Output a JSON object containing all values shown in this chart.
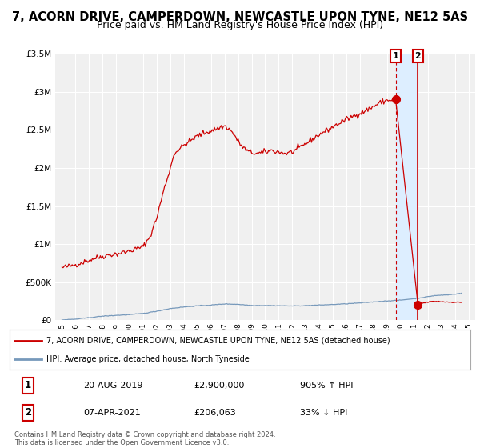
{
  "title": "7, ACORN DRIVE, CAMPERDOWN, NEWCASTLE UPON TYNE, NE12 5AS",
  "subtitle": "Price paid vs. HM Land Registry's House Price Index (HPI)",
  "red_label": "7, ACORN DRIVE, CAMPERDOWN, NEWCASTLE UPON TYNE, NE12 5AS (detached house)",
  "blue_label": "HPI: Average price, detached house, North Tyneside",
  "annotation1_date": "20-AUG-2019",
  "annotation1_price": "£2,900,000",
  "annotation1_hpi": "905% ↑ HPI",
  "annotation2_date": "07-APR-2021",
  "annotation2_price": "£206,063",
  "annotation2_hpi": "33% ↓ HPI",
  "footnote1": "Contains HM Land Registry data © Crown copyright and database right 2024.",
  "footnote2": "This data is licensed under the Open Government Licence v3.0.",
  "ylim": [
    0,
    3500000
  ],
  "xlim_start": 1994.5,
  "xlim_end": 2025.5,
  "marker1_x": 2019.63,
  "marker1_y": 2900000,
  "marker2_x": 2021.27,
  "marker2_y": 206063,
  "vline1_x": 2019.63,
  "vline2_x": 2021.27,
  "background_color": "#ffffff",
  "plot_bg_color": "#f0f0f0",
  "grid_color": "#ffffff",
  "red_color": "#cc0000",
  "blue_color": "#7799bb",
  "span_color": "#ddeeff",
  "title_fontsize": 10.5,
  "subtitle_fontsize": 9
}
